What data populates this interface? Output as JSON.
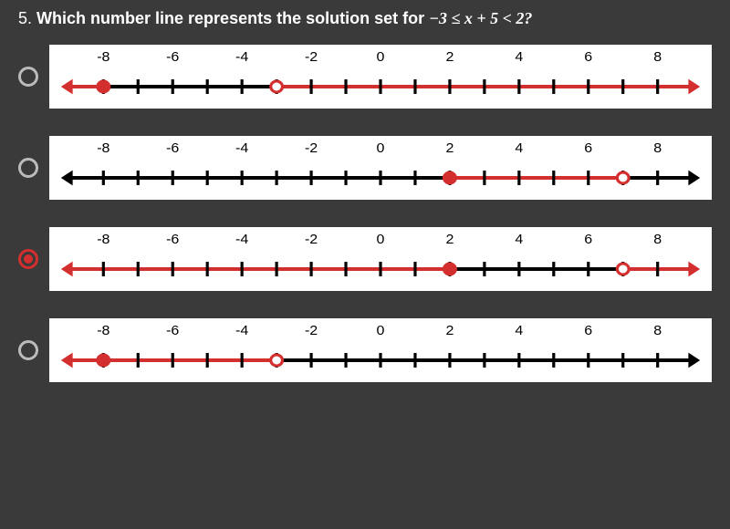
{
  "question": {
    "number": "5.",
    "text_before": "Which number line represents the solution set for ",
    "expr": "−3 ≤ x + 5 < 2?",
    "text_after": ""
  },
  "axis": {
    "min": -9,
    "max": 9,
    "tick_step": 1,
    "labels": [
      -8,
      -6,
      -4,
      -2,
      0,
      2,
      4,
      6,
      8
    ],
    "line_color": "#000000",
    "highlight_color": "#d32f2f",
    "line_width": 4,
    "tick_height": 8,
    "label_fontsize": 15
  },
  "options": [
    {
      "id": "A",
      "selected": false,
      "segments": [
        {
          "from": -9,
          "to": -8,
          "color": "#d32f2f",
          "arrow_start": true
        },
        {
          "from": -8,
          "to": -3,
          "color": "#000000"
        },
        {
          "from": -3,
          "to": 9,
          "color": "#d32f2f",
          "arrow_end": true
        }
      ],
      "points": [
        {
          "x": -8,
          "type": "closed",
          "stroke": "#d32f2f",
          "fill": "#d32f2f"
        },
        {
          "x": -3,
          "type": "open",
          "stroke": "#d32f2f",
          "fill": "#ffffff"
        }
      ]
    },
    {
      "id": "B",
      "selected": false,
      "segments": [
        {
          "from": -9,
          "to": 2,
          "color": "#000000",
          "arrow_start": true
        },
        {
          "from": 2,
          "to": 7,
          "color": "#d32f2f"
        },
        {
          "from": 7,
          "to": 9,
          "color": "#000000",
          "arrow_end": true
        }
      ],
      "points": [
        {
          "x": 2,
          "type": "closed",
          "stroke": "#d32f2f",
          "fill": "#d32f2f"
        },
        {
          "x": 7,
          "type": "open",
          "stroke": "#d32f2f",
          "fill": "#ffffff"
        }
      ]
    },
    {
      "id": "C",
      "selected": true,
      "segments": [
        {
          "from": -9,
          "to": 2,
          "color": "#d32f2f",
          "arrow_start": true
        },
        {
          "from": 2,
          "to": 7,
          "color": "#000000"
        },
        {
          "from": 7,
          "to": 9,
          "color": "#d32f2f",
          "arrow_end": true
        }
      ],
      "points": [
        {
          "x": 2,
          "type": "closed",
          "stroke": "#d32f2f",
          "fill": "#d32f2f"
        },
        {
          "x": 7,
          "type": "open",
          "stroke": "#d32f2f",
          "fill": "#ffffff"
        }
      ]
    },
    {
      "id": "D",
      "selected": false,
      "segments": [
        {
          "from": -9,
          "to": -8,
          "color": "#d32f2f",
          "arrow_start": true
        },
        {
          "from": -8,
          "to": -3,
          "color": "#d32f2f"
        },
        {
          "from": -3,
          "to": 9,
          "color": "#000000",
          "arrow_end": true
        }
      ],
      "points": [
        {
          "x": -8,
          "type": "closed",
          "stroke": "#d32f2f",
          "fill": "#d32f2f"
        },
        {
          "x": -3,
          "type": "open",
          "stroke": "#d32f2f",
          "fill": "#ffffff"
        }
      ]
    }
  ]
}
